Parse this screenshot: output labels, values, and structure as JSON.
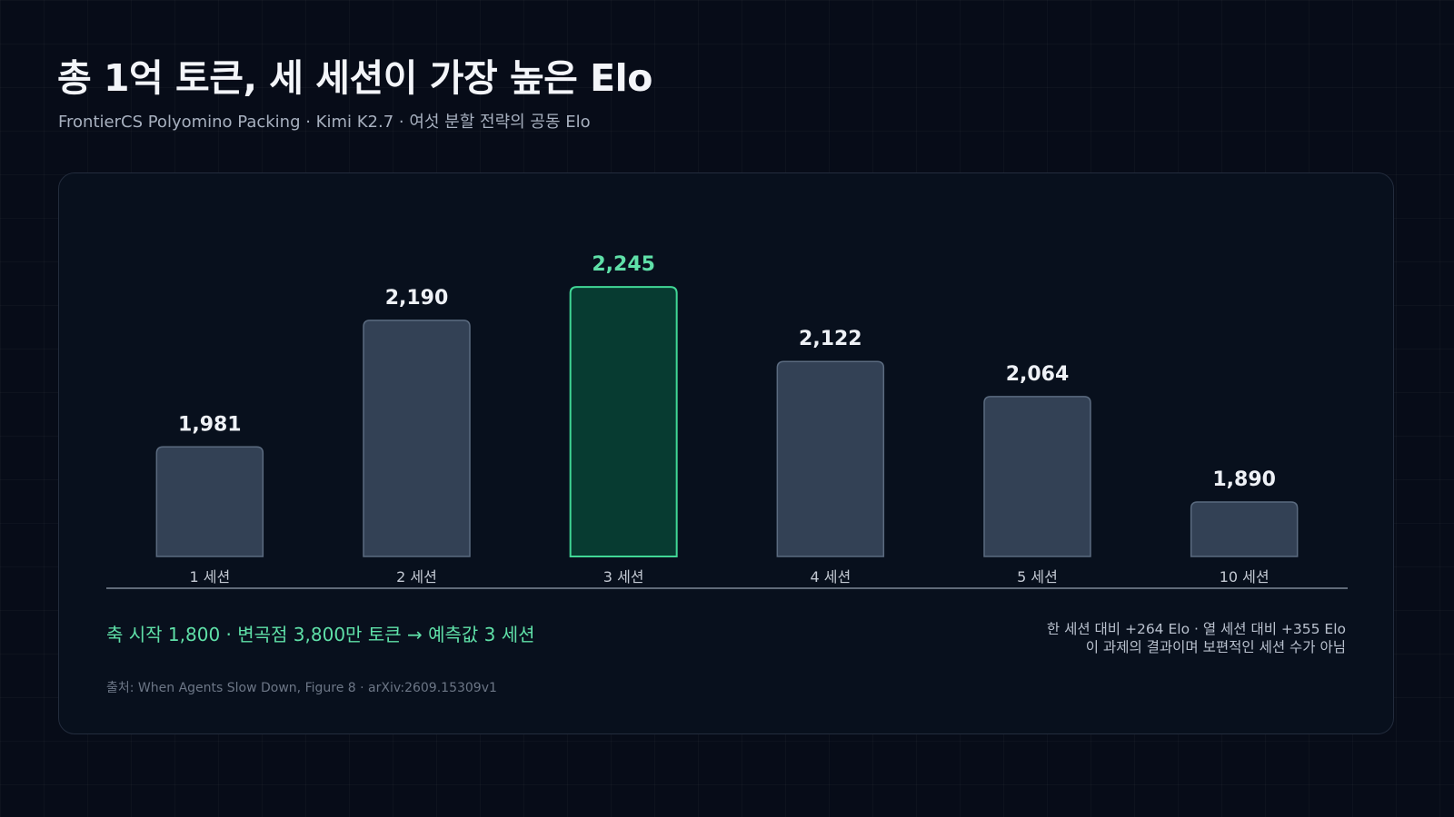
{
  "header": {
    "title": "총 1억 토큰, 세 세션이 가장 높은 Elo",
    "subtitle": "FrontierCS Polyomino Packing · Kimi K2.7 · 여섯 분할 전략의 공동 Elo"
  },
  "chart_data": {
    "type": "bar",
    "categories": [
      "1 세션",
      "2 세션",
      "3 세션",
      "4 세션",
      "5 세션",
      "10 세션"
    ],
    "values": [
      1981,
      2190,
      2245,
      2122,
      2064,
      1890
    ],
    "value_labels": [
      "1,981",
      "2,190",
      "2,245",
      "2,122",
      "2,064",
      "1,890"
    ],
    "highlight_index": 2,
    "ylim": [
      1800,
      2300
    ],
    "grid": false,
    "legend": "none",
    "xlabel": "",
    "ylabel": ""
  },
  "colors": {
    "bar_fill": "#334155",
    "bar_stroke": "#5b6b80",
    "highlight_fill": "#073b31",
    "highlight_stroke": "#41d796",
    "highlight_text": "#5fe0a8",
    "axis_line": "#7d8796",
    "value_text": "#eef1f6",
    "tick_text": "#c3c9d3"
  },
  "notes": {
    "left": "축 시작 1,800 · 변곡점 3,800만 토큰 → 예측값 3 세션",
    "right_line1": "한 세션 대비 +264 Elo · 열 세션 대비 +355 Elo",
    "right_line2": "이 과제의 결과이며 보편적인 세션 수가 아님",
    "source": "출처: When Agents Slow Down, Figure 8 · arXiv:2609.15309v1"
  }
}
